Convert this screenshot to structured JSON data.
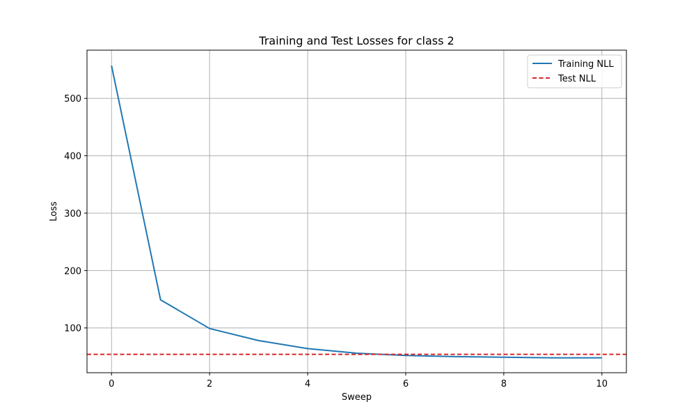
{
  "chart_data": {
    "type": "line",
    "title": "Training and Test Losses for class 2",
    "xlabel": "Sweep",
    "ylabel": "Loss",
    "xlim": [
      -0.5,
      10.5
    ],
    "ylim": [
      22,
      584
    ],
    "x_ticks": [
      0,
      2,
      4,
      6,
      8,
      10
    ],
    "y_ticks": [
      100,
      200,
      300,
      400,
      500
    ],
    "grid": true,
    "legend_position": "top-right",
    "series": [
      {
        "name": "Training NLL",
        "style": "solid",
        "color": "#1f77b4",
        "x": [
          0,
          1,
          2,
          3,
          4,
          5,
          6,
          7,
          8,
          9,
          10
        ],
        "y": [
          557,
          149,
          99,
          78,
          64,
          56,
          52,
          50,
          49,
          48,
          48
        ]
      },
      {
        "name": "Test NLL",
        "style": "dashed",
        "color": "#d62728",
        "type": "hline",
        "y": 54
      }
    ]
  }
}
